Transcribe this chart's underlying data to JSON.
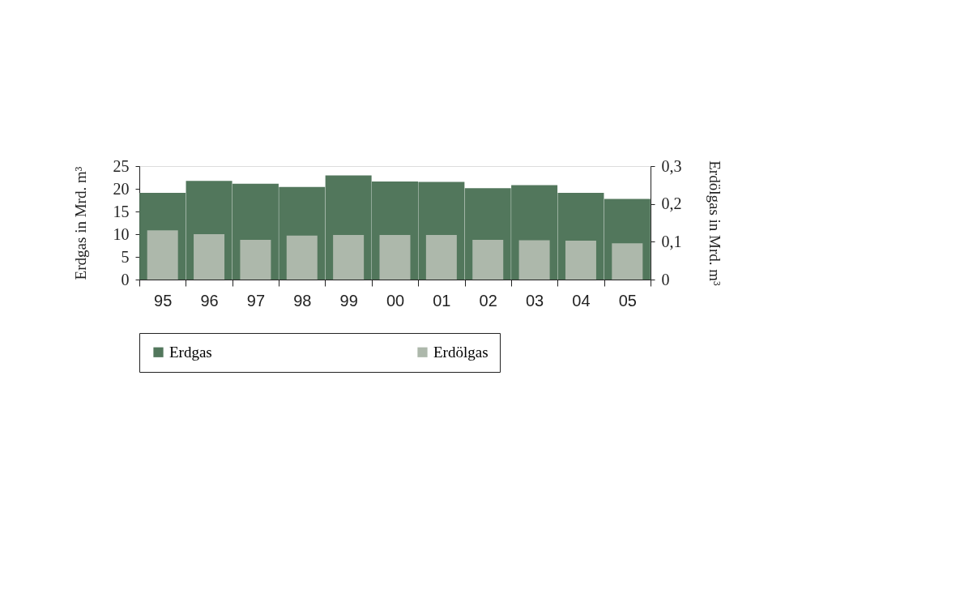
{
  "chart_data": {
    "type": "bar",
    "categories": [
      "95",
      "96",
      "97",
      "98",
      "99",
      "00",
      "01",
      "02",
      "03",
      "04",
      "05"
    ],
    "ylabel": "Erdgas in Mrd. m³",
    "y2label": "Erdölgas in Mrd. m³",
    "ylim": [
      0,
      25
    ],
    "yticks": [
      0,
      5,
      10,
      15,
      20,
      25
    ],
    "y2lim": [
      0,
      0.3
    ],
    "y2ticks": [
      0,
      {
        "value": 0.1,
        "label": "0,1"
      },
      {
        "value": 0.2,
        "label": "0,2"
      },
      {
        "value": 0.3,
        "label": "0,3"
      }
    ],
    "series": [
      {
        "name": "Erdgas",
        "color": "#52775c",
        "values": [
          19.1,
          21.75,
          21.1,
          20.4,
          22.95,
          21.6,
          21.5,
          20.15,
          20.8,
          19.1,
          17.75
        ]
      },
      {
        "name": "Erdölgas",
        "color": "#adb8ab",
        "axis": "y2",
        "values": [
          0.13,
          0.12,
          0.105,
          0.116,
          0.118,
          0.118,
          0.118,
          0.105,
          0.104,
          0.103,
          0.096
        ]
      }
    ],
    "legend": "bottom",
    "grid": false
  }
}
